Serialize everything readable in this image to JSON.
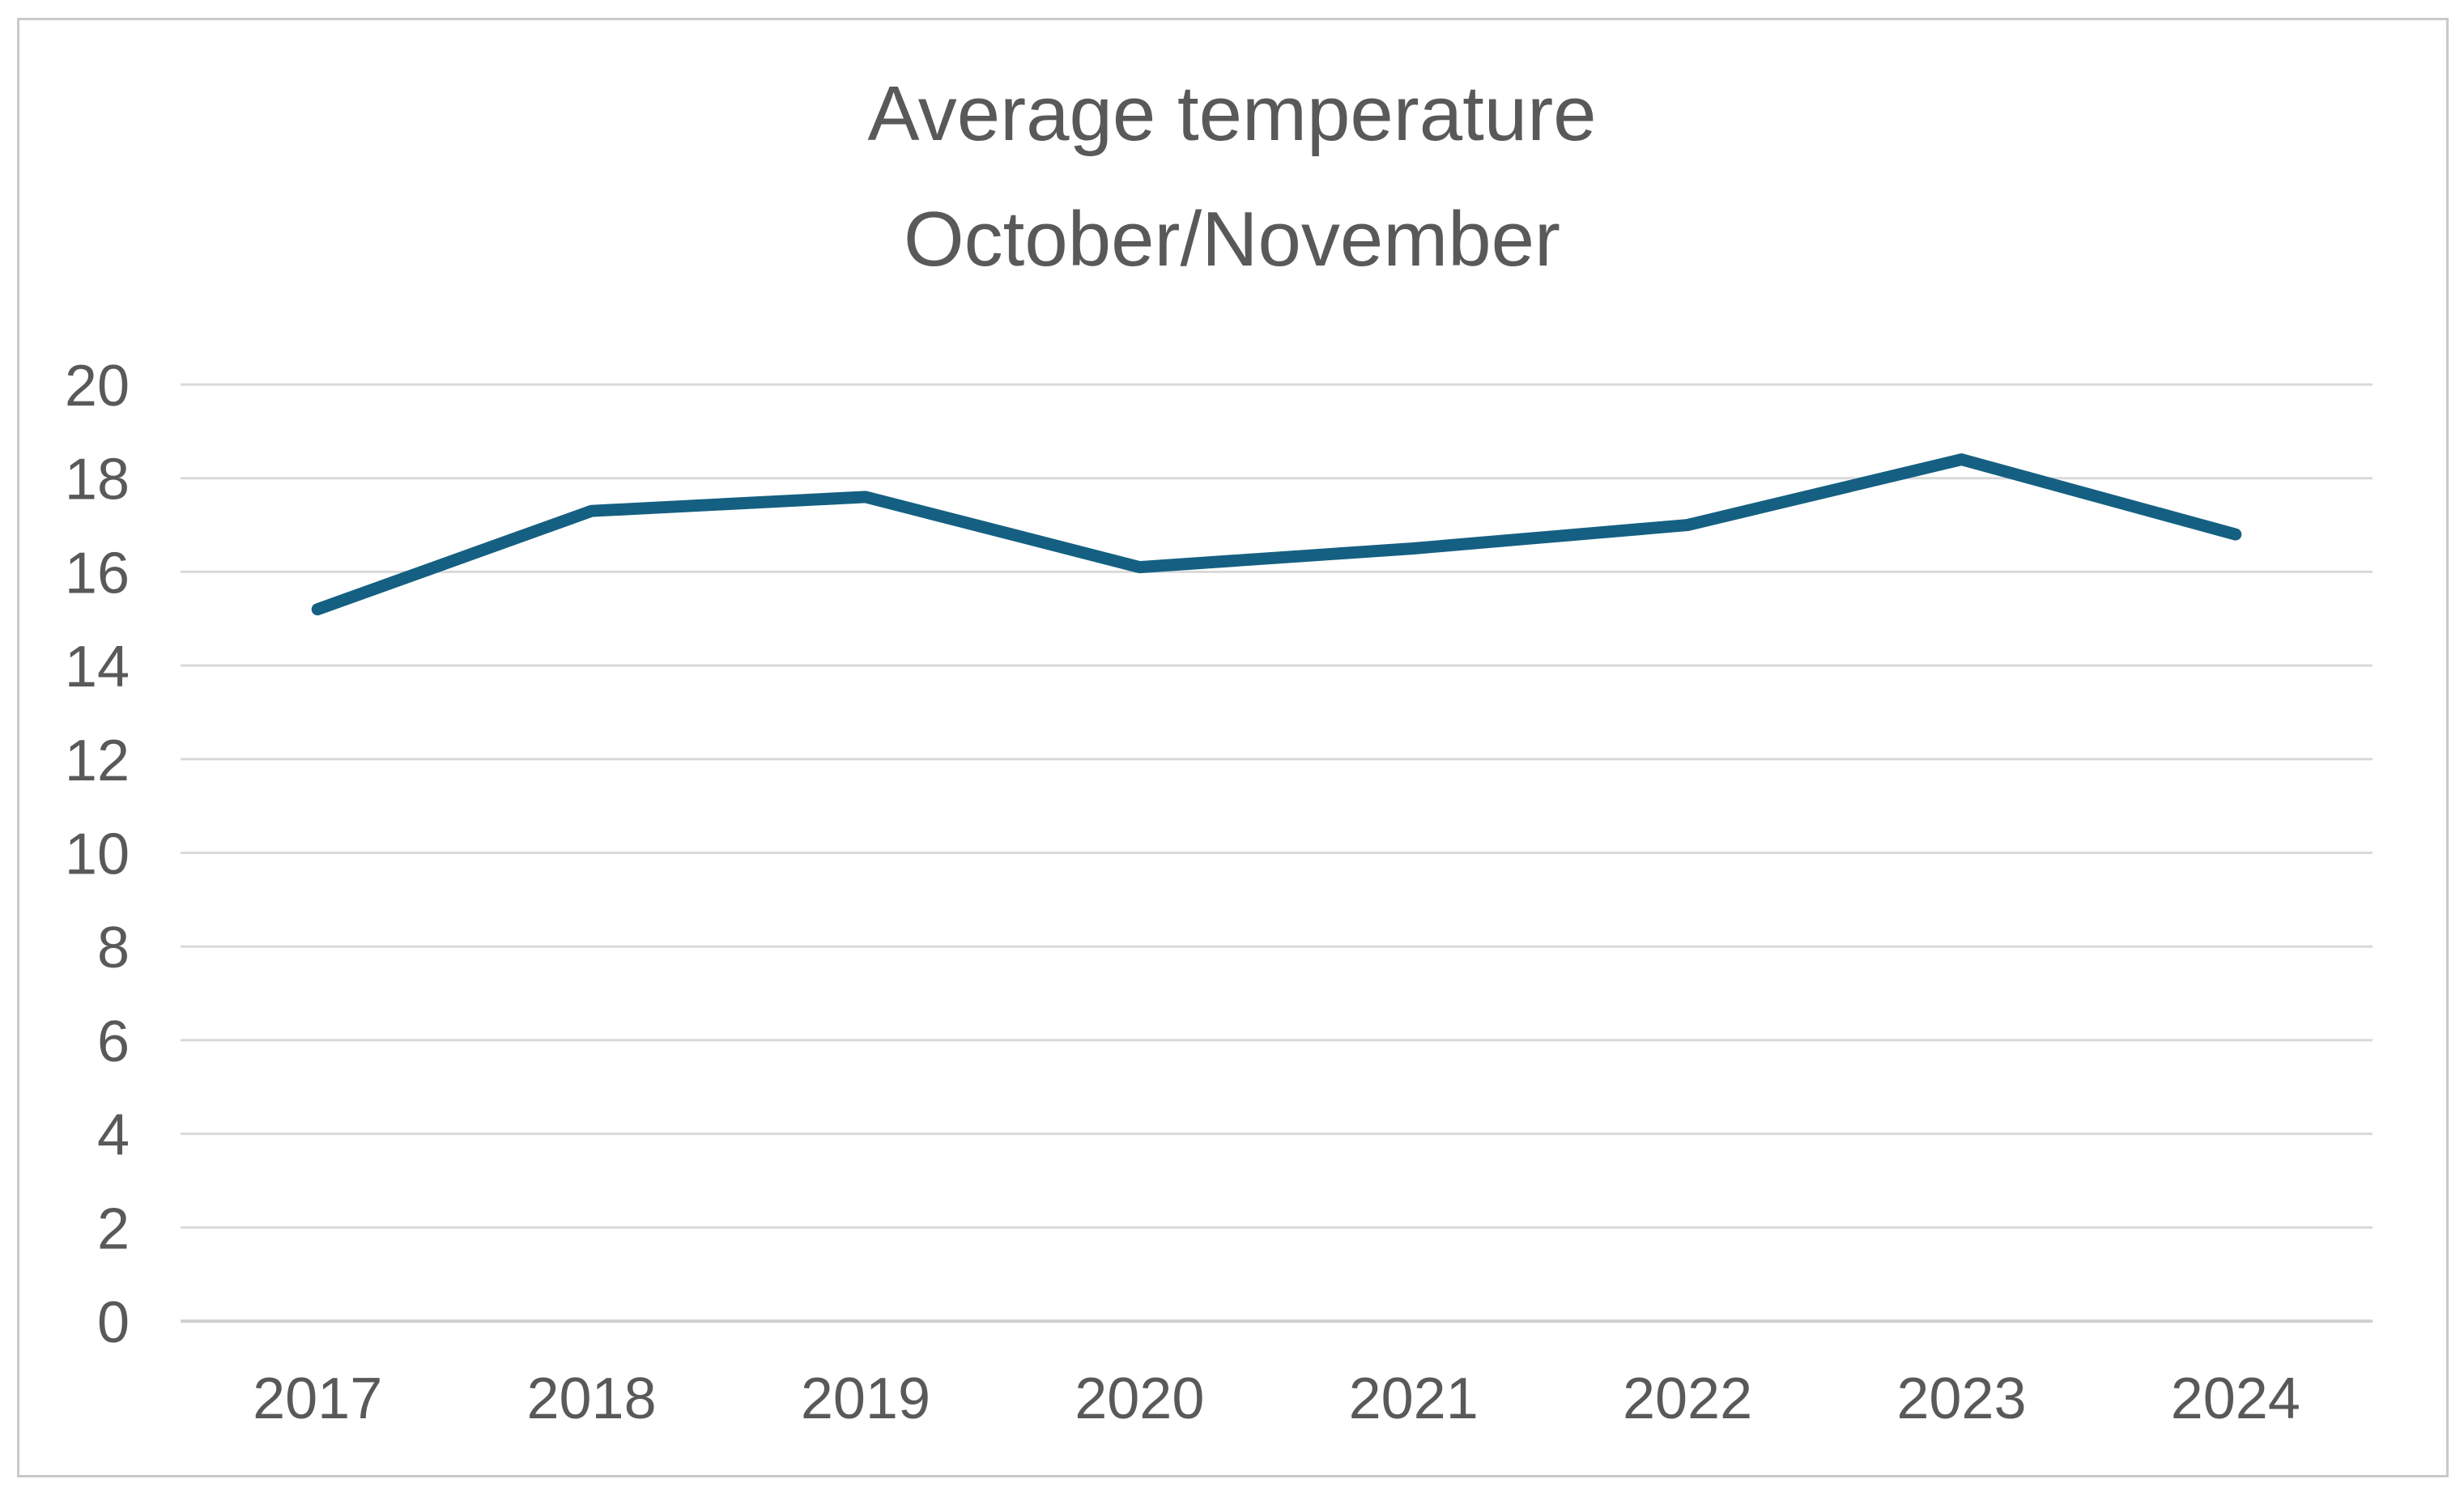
{
  "chart_data": {
    "type": "line",
    "title": "Average temperature",
    "title_line2": "October/November",
    "categories": [
      "2017",
      "2018",
      "2019",
      "2020",
      "2021",
      "2022",
      "2023",
      "2024"
    ],
    "series": [
      {
        "name": "Average temperature October/November",
        "values": [
          15.2,
          17.3,
          17.6,
          16.1,
          16.5,
          17.0,
          18.4,
          16.8
        ]
      }
    ],
    "xlabel": "",
    "ylabel": "",
    "ylim": [
      0,
      20
    ],
    "y_ticks": [
      0,
      2,
      4,
      6,
      8,
      10,
      12,
      14,
      16,
      18,
      20
    ],
    "grid": "horizontal",
    "legend": "none",
    "colors": {
      "line": "#156082",
      "text": "#595959",
      "gridline": "#D9D9D9",
      "axis_line": "#D0D0D0",
      "frame_border": "#C9C9C9",
      "background": "#FFFFFF"
    }
  }
}
